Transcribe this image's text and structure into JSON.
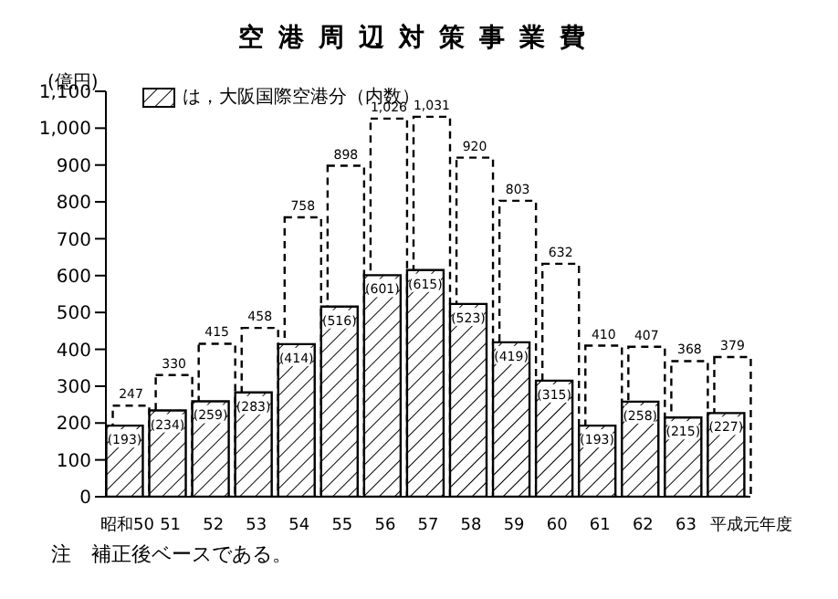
{
  "chart_data": {
    "type": "bar",
    "title": "空港周辺対策事業費",
    "ylabel": "(億円)",
    "categories": [
      "昭和50",
      "51",
      "52",
      "53",
      "54",
      "55",
      "56",
      "57",
      "58",
      "59",
      "60",
      "61",
      "62",
      "63",
      "平成元年度"
    ],
    "series": [
      {
        "color": "#000000",
        "line_style": "dashed",
        "values": [
          247,
          330,
          415,
          458,
          758,
          898,
          1026,
          1031,
          920,
          803,
          632,
          410,
          407,
          368,
          379
        ],
        "value_labels": [
          "247",
          "330",
          "415",
          "458",
          "758",
          "898",
          "1,026",
          "1,031",
          "920",
          "803",
          "632",
          "410",
          "407",
          "368",
          "379"
        ]
      },
      {
        "name": "は，大阪国際空港分（内数）",
        "color": "#000000",
        "line_style": "solid",
        "values": [
          193,
          234,
          259,
          283,
          414,
          516,
          601,
          615,
          523,
          419,
          315,
          193,
          258,
          215,
          227
        ],
        "value_labels": [
          "(193)",
          "(234)",
          "(259)",
          "(283)",
          "(414)",
          "(516)",
          "(601)",
          "(615)",
          "(523)",
          "(419)",
          "(315)",
          "(193)",
          "(258)",
          "(215)",
          "(227)"
        ]
      }
    ],
    "ylim": [
      0,
      1100
    ],
    "yticks": [
      0,
      100,
      200,
      300,
      400,
      500,
      600,
      700,
      800,
      900,
      {
        "value": 1000,
        "label": "1,000"
      },
      {
        "value": 1100,
        "label": "1,100"
      }
    ],
    "grid": false,
    "legend": "top left",
    "annotations": [
      "注　補正後ベースである。"
    ]
  }
}
